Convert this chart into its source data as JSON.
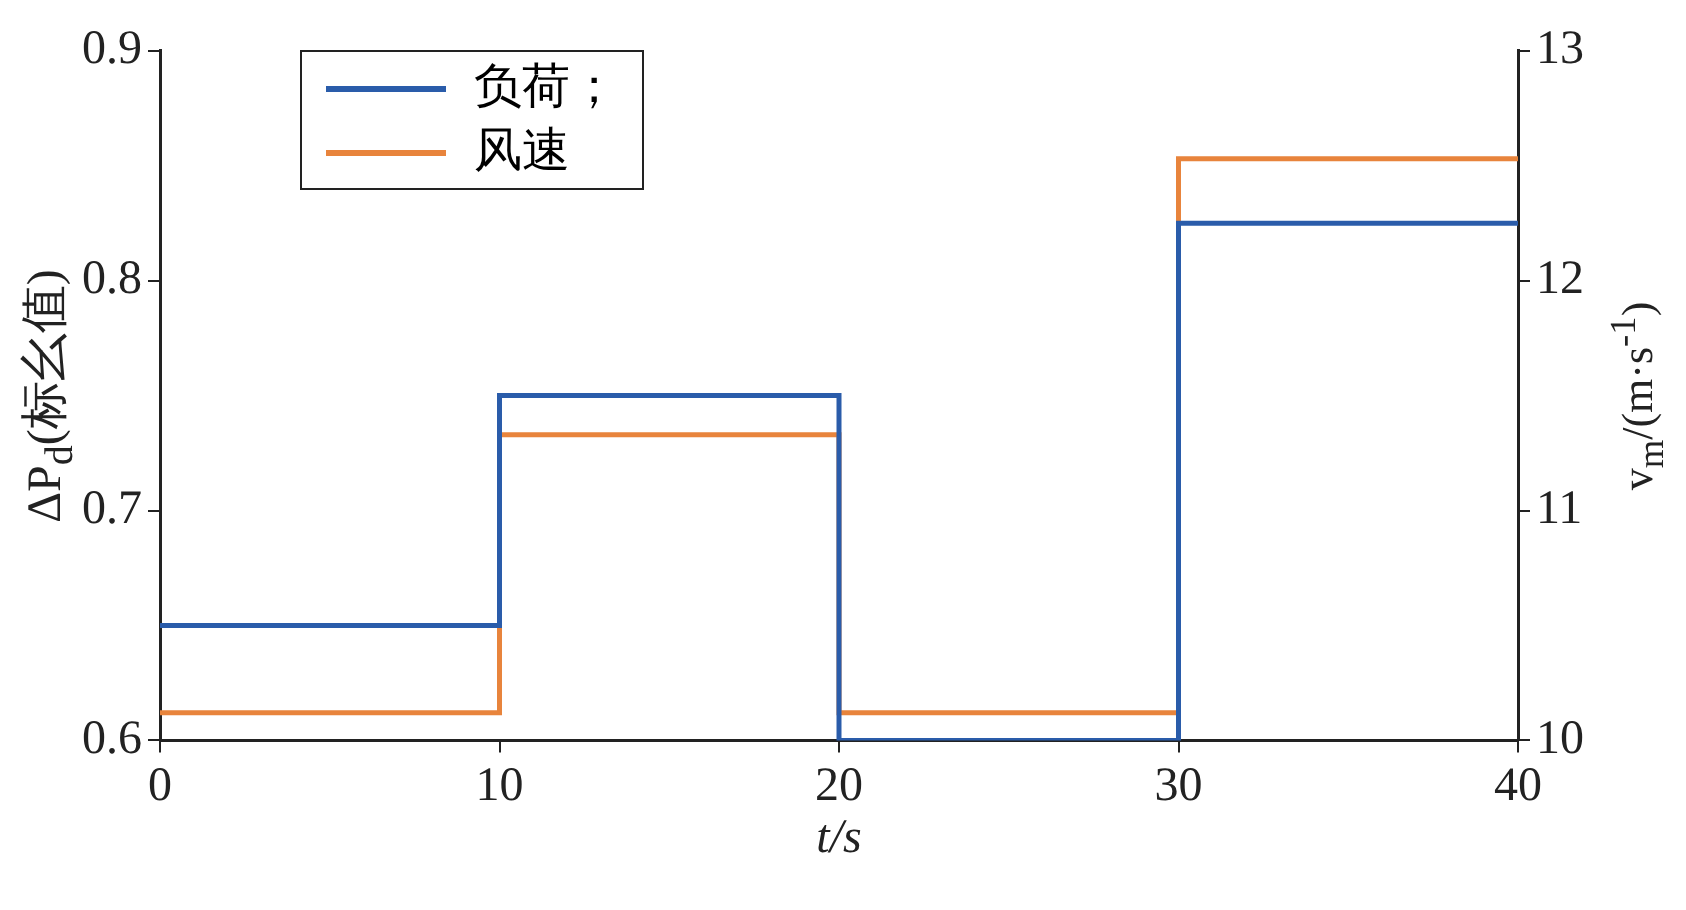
{
  "chart_data": {
    "type": "step",
    "xlabel": "t/s",
    "ylabel": "ΔP$_{d}$(标幺值)",
    "y2label": "v$_{m}$/(m·s$^{-1}$)",
    "x": [
      0,
      10,
      20,
      30,
      40
    ],
    "series": [
      {
        "name": "负荷；",
        "color": "#2a5caa",
        "values": [
          0.65,
          0.75,
          0.6,
          0.825,
          0.825
        ]
      },
      {
        "name": "风速",
        "color": "#e8843c",
        "values": [
          10.12,
          11.33,
          10.12,
          12.53,
          12.53
        ],
        "axis": "y2"
      }
    ],
    "xlim": [
      0,
      40
    ],
    "xticks": [
      0,
      10,
      20,
      30,
      40
    ],
    "ylim": [
      0.6,
      0.9
    ],
    "yticks": [
      {
        "value": 0.6,
        "label": "0.6"
      },
      {
        "value": 0.7,
        "label": "0.7"
      },
      {
        "value": 0.8,
        "label": "0.8"
      },
      {
        "value": 0.9,
        "label": "0.9"
      }
    ],
    "y2lim": [
      10,
      13
    ],
    "y2ticks": [
      10,
      11,
      12,
      13
    ],
    "legend": "top left",
    "grid": false
  }
}
